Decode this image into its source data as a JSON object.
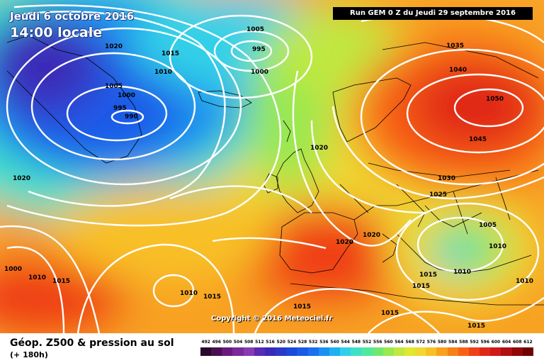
{
  "map": {
    "title_date": "Jeudi 6 octobre 2016",
    "title_time": "14:00 locale",
    "run_info": "Run GEM 0 Z du Jeudi 29 septembre 2016",
    "copyright": "Copyright © 2016 Meteociel.fr",
    "pressure_labels": [
      {
        "text": "1020"
      },
      {
        "text": "1015"
      },
      {
        "text": "1010"
      },
      {
        "text": "1005"
      },
      {
        "text": "1000"
      },
      {
        "text": "995"
      },
      {
        "text": "990"
      },
      {
        "text": "1005"
      },
      {
        "text": "995"
      },
      {
        "text": "1000"
      },
      {
        "text": "1035"
      },
      {
        "text": "1040"
      },
      {
        "text": "1050"
      },
      {
        "text": "1045"
      },
      {
        "text": "1020"
      },
      {
        "text": "1030"
      },
      {
        "text": "1025"
      },
      {
        "text": "1020"
      },
      {
        "text": "1020"
      },
      {
        "text": "1020"
      },
      {
        "text": "1005"
      },
      {
        "text": "1010"
      },
      {
        "text": "1015"
      },
      {
        "text": "1010"
      },
      {
        "text": "1015"
      },
      {
        "text": "1010"
      },
      {
        "text": "1000"
      },
      {
        "text": "1010"
      },
      {
        "text": "1015"
      },
      {
        "text": "1010"
      },
      {
        "text": "1015"
      },
      {
        "text": "1015"
      },
      {
        "text": "1015"
      },
      {
        "text": "1015"
      }
    ]
  },
  "legend": {
    "title": "Géop. Z500 & pression au sol",
    "subtitle": "(+ 180h)",
    "scale_values": [
      "492",
      "496",
      "500",
      "504",
      "508",
      "512",
      "516",
      "520",
      "524",
      "528",
      "532",
      "536",
      "540",
      "544",
      "548",
      "552",
      "556",
      "560",
      "564",
      "568",
      "572",
      "576",
      "580",
      "584",
      "588",
      "592",
      "596",
      "600",
      "604",
      "608",
      "612"
    ],
    "scale_colors": [
      "#2a0a2a",
      "#4a1050",
      "#6a1a7a",
      "#7a2a9a",
      "#8a3ab0",
      "#5a2ab0",
      "#3a2ab8",
      "#2a3ac8",
      "#1a4ad8",
      "#1a5ae8",
      "#1a70f0",
      "#1a90f0",
      "#20b0f0",
      "#30d0e8",
      "#40e0c8",
      "#50e8a0",
      "#70e870",
      "#98e850",
      "#c0e840",
      "#e0e830",
      "#f0d830",
      "#f8c028",
      "#f8a020",
      "#f88018",
      "#f86018",
      "#f04018",
      "#e02818",
      "#d01818",
      "#b01010",
      "#900808",
      "#700000"
    ]
  }
}
